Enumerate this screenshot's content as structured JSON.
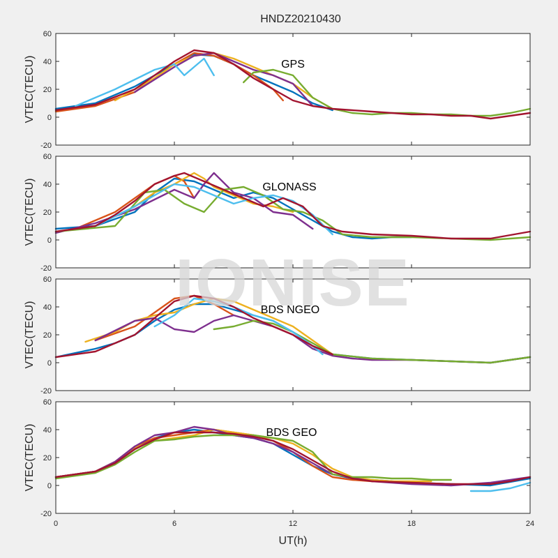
{
  "figure_title": "HNDZ20210430",
  "watermark": "IONISE",
  "chart_data": {
    "type": "line",
    "title": "HNDZ20210430",
    "xlabel": "UT(h)",
    "xlim": [
      0,
      24
    ],
    "xticks": [
      0,
      6,
      12,
      18,
      24
    ],
    "colors": [
      "#0072BD",
      "#D95319",
      "#EDB120",
      "#7E2F8E",
      "#77AC30",
      "#4DBEEE",
      "#A2142F"
    ],
    "panels": [
      {
        "annotation": "GPS",
        "ylabel": "VTEC(TECU)",
        "ylim": [
          -20,
          60
        ],
        "yticks": [
          -20,
          0,
          20,
          40,
          60
        ],
        "series": [
          {
            "x": [
              0,
              2,
              4,
              6,
              7,
              8,
              9,
              10,
              11,
              12,
              13,
              14
            ],
            "y": [
              6,
              10,
              22,
              38,
              45,
              44,
              38,
              30,
              24,
              18,
              10,
              5
            ]
          },
          {
            "x": [
              0,
              2,
              4,
              5,
              6,
              7,
              8,
              9,
              10,
              11,
              11.5
            ],
            "y": [
              4,
              8,
              18,
              28,
              38,
              46,
              44,
              38,
              30,
              20,
              12
            ]
          },
          {
            "x": [
              3,
              5,
              6,
              7,
              8,
              9,
              10,
              11,
              12,
              13,
              14
            ],
            "y": [
              12,
              28,
              38,
              44,
              46,
              42,
              36,
              30,
              24,
              14,
              6
            ]
          },
          {
            "x": [
              4,
              6,
              7,
              8,
              9,
              10,
              11,
              12,
              13
            ],
            "y": [
              18,
              36,
              44,
              46,
              40,
              34,
              30,
              24,
              8
            ]
          },
          {
            "x": [
              9.5,
              10,
              11,
              12,
              13,
              14,
              15,
              16,
              17,
              18,
              19,
              20,
              21,
              22,
              23,
              24
            ],
            "y": [
              25,
              32,
              34,
              30,
              14,
              6,
              3,
              2,
              3,
              3,
              2,
              2,
              1,
              1,
              3,
              6
            ]
          },
          {
            "x": [
              1,
              3,
              5,
              6,
              6.5,
              7,
              7.5,
              8
            ],
            "y": [
              8,
              20,
              34,
              38,
              30,
              36,
              42,
              30
            ]
          },
          {
            "x": [
              0,
              2,
              4,
              6,
              7,
              8,
              9,
              10,
              11,
              12,
              13,
              14,
              15,
              16,
              17,
              18,
              19,
              20,
              21,
              22,
              23,
              24
            ],
            "y": [
              5,
              9,
              20,
              40,
              48,
              46,
              38,
              28,
              20,
              12,
              8,
              6,
              5,
              4,
              3,
              2,
              2,
              1,
              1,
              -1,
              1,
              3
            ]
          }
        ]
      },
      {
        "annotation": "GLONASS",
        "ylabel": "VTEC(TECU)",
        "ylim": [
          -20,
          60
        ],
        "yticks": [
          -20,
          0,
          20,
          40,
          60
        ],
        "series": [
          {
            "x": [
              0,
              2,
              4,
              5,
              6,
              7,
              8,
              9,
              10,
              11,
              12,
              13,
              14,
              15,
              16,
              17,
              18
            ],
            "y": [
              8,
              10,
              20,
              34,
              44,
              42,
              36,
              30,
              34,
              30,
              22,
              14,
              6,
              2,
              1,
              2,
              2
            ]
          },
          {
            "x": [
              1,
              3,
              5,
              6,
              6.5,
              7
            ],
            "y": [
              8,
              20,
              40,
              46,
              42,
              30
            ]
          },
          {
            "x": [
              2,
              4,
              5,
              6,
              7,
              7.5,
              8,
              9,
              10,
              11,
              12
            ],
            "y": [
              10,
              24,
              34,
              40,
              48,
              44,
              38,
              32,
              26,
              24,
              20
            ]
          },
          {
            "x": [
              0,
              2,
              4,
              6,
              7,
              7.5,
              8,
              9,
              10,
              11,
              12,
              13
            ],
            "y": [
              5,
              12,
              22,
              36,
              30,
              40,
              48,
              34,
              30,
              20,
              18,
              8
            ]
          },
          {
            "x": [
              0,
              3,
              4.5,
              5.5,
              6.5,
              7.5,
              8.5,
              9.5,
              10.5,
              11.5,
              12.5,
              13.5,
              14.5,
              16,
              18,
              20,
              22,
              24
            ],
            "y": [
              6,
              10,
              34,
              36,
              26,
              20,
              36,
              38,
              32,
              22,
              20,
              14,
              4,
              2,
              2,
              1,
              0,
              2
            ]
          },
          {
            "x": [
              2,
              4,
              5,
              6,
              7,
              8,
              9,
              10,
              11,
              12,
              13,
              14
            ],
            "y": [
              10,
              24,
              32,
              40,
              38,
              32,
              26,
              30,
              32,
              28,
              18,
              4
            ]
          },
          {
            "x": [
              0,
              2,
              3,
              4,
              5,
              6,
              6.5,
              7.5,
              8.5,
              9.5,
              10.5,
              11.5,
              12.5,
              13.5,
              14.5,
              16,
              18,
              20,
              22,
              24
            ],
            "y": [
              6,
              10,
              18,
              28,
              40,
              46,
              48,
              42,
              36,
              30,
              24,
              30,
              24,
              10,
              6,
              4,
              3,
              1,
              1,
              6
            ]
          }
        ]
      },
      {
        "annotation": "BDS NGEO",
        "ylabel": "VTEC(TECU)",
        "ylim": [
          -20,
          60
        ],
        "yticks": [
          -20,
          0,
          20,
          40,
          60
        ],
        "series": [
          {
            "x": [
              0,
              2,
              3,
              4,
              5,
              6,
              7,
              8,
              9,
              10,
              11,
              12,
              13,
              14,
              16,
              18,
              20,
              22,
              24
            ],
            "y": [
              4,
              10,
              14,
              20,
              30,
              38,
              42,
              42,
              38,
              34,
              30,
              22,
              12,
              6,
              3,
              2,
              1,
              0,
              4
            ]
          },
          {
            "x": [
              2,
              4,
              5,
              6,
              7,
              8,
              9
            ],
            "y": [
              16,
              26,
              36,
              46,
              48,
              42,
              34
            ]
          },
          {
            "x": [
              1.5,
              3,
              4,
              5,
              6,
              7,
              8,
              9,
              10,
              11,
              12,
              13,
              14
            ],
            "y": [
              15,
              22,
              30,
              34,
              36,
              42,
              46,
              44,
              38,
              32,
              26,
              16,
              6
            ]
          },
          {
            "x": [
              2,
              4,
              5,
              6,
              7,
              8,
              9,
              10,
              11,
              12,
              13,
              14,
              15,
              16,
              18,
              20,
              22,
              24
            ],
            "y": [
              16,
              30,
              32,
              24,
              22,
              30,
              34,
              30,
              26,
              20,
              10,
              5,
              3,
              2,
              2,
              1,
              0,
              4
            ]
          },
          {
            "x": [
              8,
              9,
              10,
              11,
              12,
              13,
              14,
              16,
              18,
              20,
              22,
              24
            ],
            "y": [
              24,
              26,
              30,
              28,
              22,
              14,
              6,
              3,
              2,
              1,
              0,
              4
            ]
          },
          {
            "x": [
              5,
              6,
              7,
              8,
              9,
              10,
              11,
              12,
              13,
              13.5
            ],
            "y": [
              26,
              34,
              46,
              44,
              40,
              34,
              30,
              22,
              12,
              6
            ]
          },
          {
            "x": [
              0,
              2,
              4,
              5,
              6,
              7,
              8,
              9,
              10,
              11,
              12,
              13,
              14
            ],
            "y": [
              4,
              8,
              20,
              32,
              44,
              48,
              46,
              40,
              32,
              26,
              20,
              12,
              6
            ]
          }
        ]
      },
      {
        "annotation": "BDS GEO",
        "ylabel": "VTEC(TECU)",
        "ylim": [
          -20,
          60
        ],
        "yticks": [
          -20,
          0,
          20,
          40,
          60
        ],
        "series": [
          {
            "x": [
              0,
              2,
              3,
              4,
              5,
              6,
              7,
              8,
              9,
              10,
              11,
              12,
              13,
              14,
              15,
              16,
              18,
              20,
              22,
              24
            ],
            "y": [
              6,
              10,
              16,
              26,
              34,
              38,
              40,
              38,
              36,
              34,
              30,
              22,
              14,
              8,
              5,
              4,
              2,
              1,
              0,
              5
            ]
          },
          {
            "x": [
              0,
              2,
              3,
              4,
              5,
              6,
              7,
              8,
              9,
              10,
              11,
              12,
              13,
              14,
              15,
              16,
              17
            ],
            "y": [
              6,
              10,
              17,
              28,
              34,
              36,
              38,
              40,
              38,
              36,
              32,
              24,
              14,
              6,
              4,
              3,
              3
            ]
          },
          {
            "x": [
              0,
              2,
              3,
              4,
              5,
              6,
              7,
              8,
              9,
              10,
              11,
              12,
              13,
              14,
              15,
              16,
              17,
              18,
              19
            ],
            "y": [
              6,
              10,
              17,
              27,
              32,
              34,
              36,
              40,
              38,
              36,
              34,
              30,
              22,
              12,
              6,
              4,
              3,
              3,
              3
            ]
          },
          {
            "x": [
              0,
              2,
              3,
              4,
              5,
              6,
              7,
              8,
              9,
              10,
              11,
              12,
              13,
              14,
              16,
              18,
              20,
              22,
              24
            ],
            "y": [
              6,
              10,
              17,
              28,
              36,
              38,
              42,
              40,
              36,
              34,
              30,
              24,
              16,
              8,
              3,
              1,
              0,
              2,
              6
            ]
          },
          {
            "x": [
              0,
              2,
              3,
              4,
              5,
              6,
              7,
              8,
              9,
              10,
              11,
              12,
              13,
              14,
              15,
              16,
              17,
              18,
              19,
              20
            ],
            "y": [
              5,
              9,
              15,
              24,
              32,
              33,
              35,
              36,
              36,
              36,
              34,
              32,
              24,
              8,
              6,
              6,
              5,
              5,
              4,
              4
            ]
          },
          {
            "x": [
              21,
              22,
              23,
              24
            ],
            "y": [
              -4,
              -4,
              -2,
              2
            ]
          },
          {
            "x": [
              0,
              2,
              3,
              4,
              5,
              6,
              7,
              8,
              9,
              10,
              11,
              12,
              13,
              14,
              15,
              16,
              18,
              20,
              21,
              22,
              23,
              24
            ],
            "y": [
              6,
              10,
              16,
              26,
              33,
              38,
              38,
              38,
              37,
              35,
              32,
              26,
              18,
              10,
              5,
              3,
              2,
              1,
              1,
              1,
              3,
              6
            ]
          }
        ]
      }
    ]
  }
}
